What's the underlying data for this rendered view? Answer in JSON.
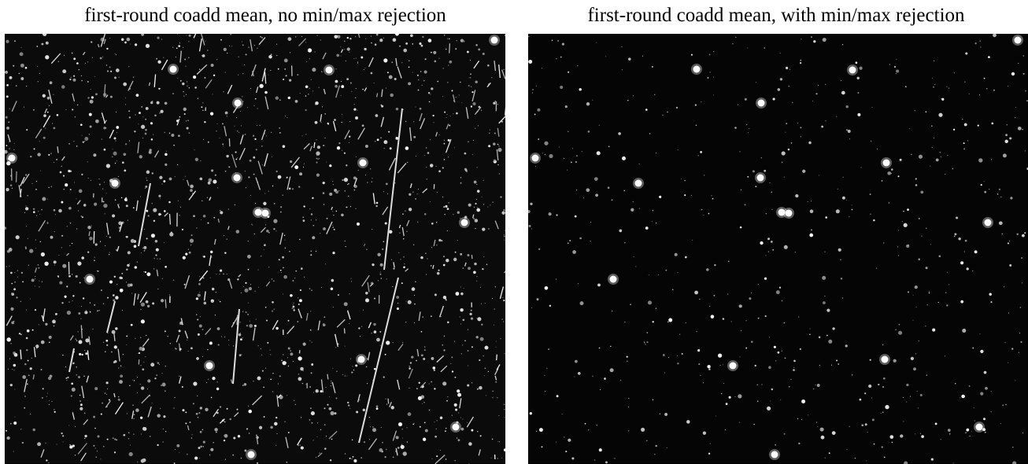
{
  "panels": [
    {
      "title": "first-round coadd mean, no min/max rejection"
    },
    {
      "title": "first-round coadd mean, with min/max rejection"
    }
  ]
}
